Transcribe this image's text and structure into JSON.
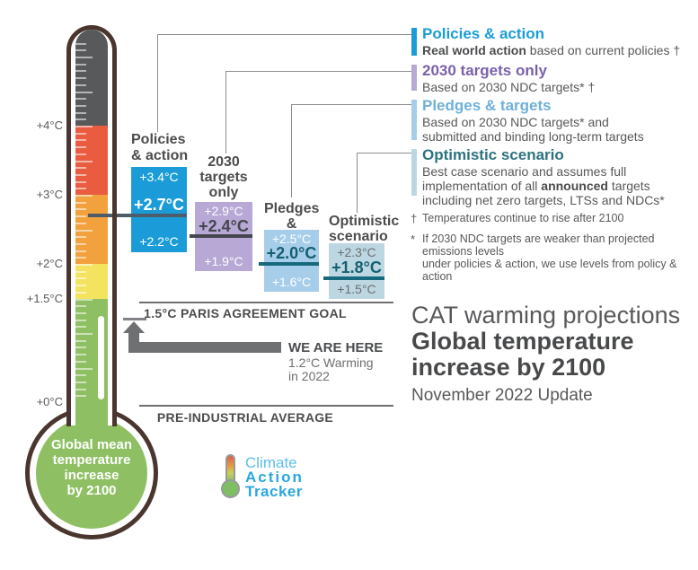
{
  "chart_data": {
    "type": "bar",
    "subtype": "floating-range-bars",
    "title": "CAT warming projections",
    "subtitle": "Global temperature increase by 2100",
    "update": "November 2022 Update",
    "unit": "°C",
    "ylabel": "Global mean temperature increase by 2100",
    "ylim": [
      0,
      4.8
    ],
    "axis_ticks": [
      "+0°C",
      "+1.5°C",
      "+2°C",
      "+3°C",
      "+4°C"
    ],
    "categories": [
      "Policies & action",
      "2030 targets only",
      "Pledges & targets",
      "Optimistic scenario"
    ],
    "series": [
      {
        "name": "high",
        "values": [
          3.4,
          2.9,
          2.5,
          2.3
        ]
      },
      {
        "name": "central",
        "values": [
          2.7,
          2.4,
          2.0,
          1.8
        ]
      },
      {
        "name": "low",
        "values": [
          2.2,
          1.9,
          1.6,
          1.5
        ]
      }
    ],
    "reference_lines": [
      {
        "label": "1.5°C PARIS AGREEMENT GOAL",
        "value": 1.5
      },
      {
        "label": "WE ARE HERE — 1.2°C Warming in 2022",
        "value": 1.2
      },
      {
        "label": "PRE-INDUSTRIAL AVERAGE",
        "value": 0
      }
    ],
    "bar_colors": [
      "#1b9cd8",
      "#b7a8d5",
      "#a6cde9",
      "#bcd7e2"
    ],
    "legend_position": "right",
    "grid": false
  },
  "thermometer": {
    "scale_labels": [
      "+4°C",
      "+3°C",
      "+2°C",
      "+1.5°C",
      "+0°C"
    ],
    "bulb_label": "Global mean\ntemperature\nincrease\nby 2100"
  },
  "bars": [
    {
      "name": "Policies & action",
      "label": "Policies\n& action",
      "high": "+3.4°C",
      "central": "+2.7°C",
      "low": "+2.2°C"
    },
    {
      "name": "2030 targets only",
      "label": "2030\ntargets\nonly",
      "high": "+2.9°C",
      "central": "+2.4°C",
      "low": "+1.9°C"
    },
    {
      "name": "Pledges & targets",
      "label": "Pledges &\ntargets",
      "high": "+2.5°C",
      "central": "+2.0°C",
      "low": "+1.6°C"
    },
    {
      "name": "Optimistic scenario",
      "label": "Optimistic\nscenario",
      "high": "+2.3°C",
      "central": "+1.8°C",
      "low": "+1.5°C"
    }
  ],
  "annotations": {
    "paris_goal": "1.5°C PARIS AGREEMENT GOAL",
    "pre_industrial": "PRE-INDUSTRIAL AVERAGE",
    "we_are_here": "WE ARE HERE",
    "current_warming": "1.2°C Warming\nin 2022"
  },
  "legend": {
    "items": [
      {
        "title": "Policies & action",
        "segments": [
          {
            "t": "Real world action",
            "b": true
          },
          {
            "t": " based on current policies †",
            "b": false
          }
        ]
      },
      {
        "title": "2030 targets only",
        "segments": [
          {
            "t": "Based on 2030 NDC targets* †",
            "b": false
          }
        ]
      },
      {
        "title": "Pledges & targets",
        "segments": [
          {
            "t": "Based on 2030 NDC targets* and\nsubmitted and binding long-term targets",
            "b": false
          }
        ]
      },
      {
        "title": "Optimistic scenario",
        "segments": [
          {
            "t": "Best case scenario and assumes full\nimplementation of all ",
            "b": false
          },
          {
            "t": "announced",
            "b": true
          },
          {
            "t": " targets\nincluding net zero targets, LTSs and NDCs*",
            "b": false
          }
        ]
      }
    ],
    "footnotes": [
      {
        "marker": "†",
        "text": "Temperatures continue to rise after 2100"
      },
      {
        "marker": "*",
        "text": "If 2030 NDC targets are weaker than projected emissions levels\nunder policies & action, we use levels from policy & action"
      }
    ]
  },
  "titles": {
    "kicker": "CAT warming projections",
    "main": "Global temperature\nincrease by 2100",
    "update": "November 2022 Update"
  },
  "logo": {
    "line1": "Climate",
    "line2": "Action",
    "line3": "Tracker"
  },
  "colors": {
    "policies_blue": "#1b9cd8",
    "targets_purple_bar": "#b7a8d5",
    "targets_purple_text": "#7b61a9",
    "pledges_blue_bar": "#a6cde9",
    "pledges_blue_text": "#6fb0d9",
    "optimistic_bar": "#bcd7e2",
    "optimistic_teal_text": "#2d7380",
    "teal_line": "#176a7d",
    "slate_line": "#4e5d6b",
    "dark_line": "#46464e",
    "thermo_gray": "#58595b",
    "thermo_red": "#e95c40",
    "thermo_orange": "#f2a23c",
    "thermo_yellow": "#f4e35f",
    "thermo_green": "#8ec063",
    "thermo_outline_brown": "#4a362e",
    "text_dark": "#4b4c4e",
    "text_gray": "#6d6e71",
    "logo_blue": "#2aa7de",
    "logo_light_blue": "#5bc0e7"
  }
}
